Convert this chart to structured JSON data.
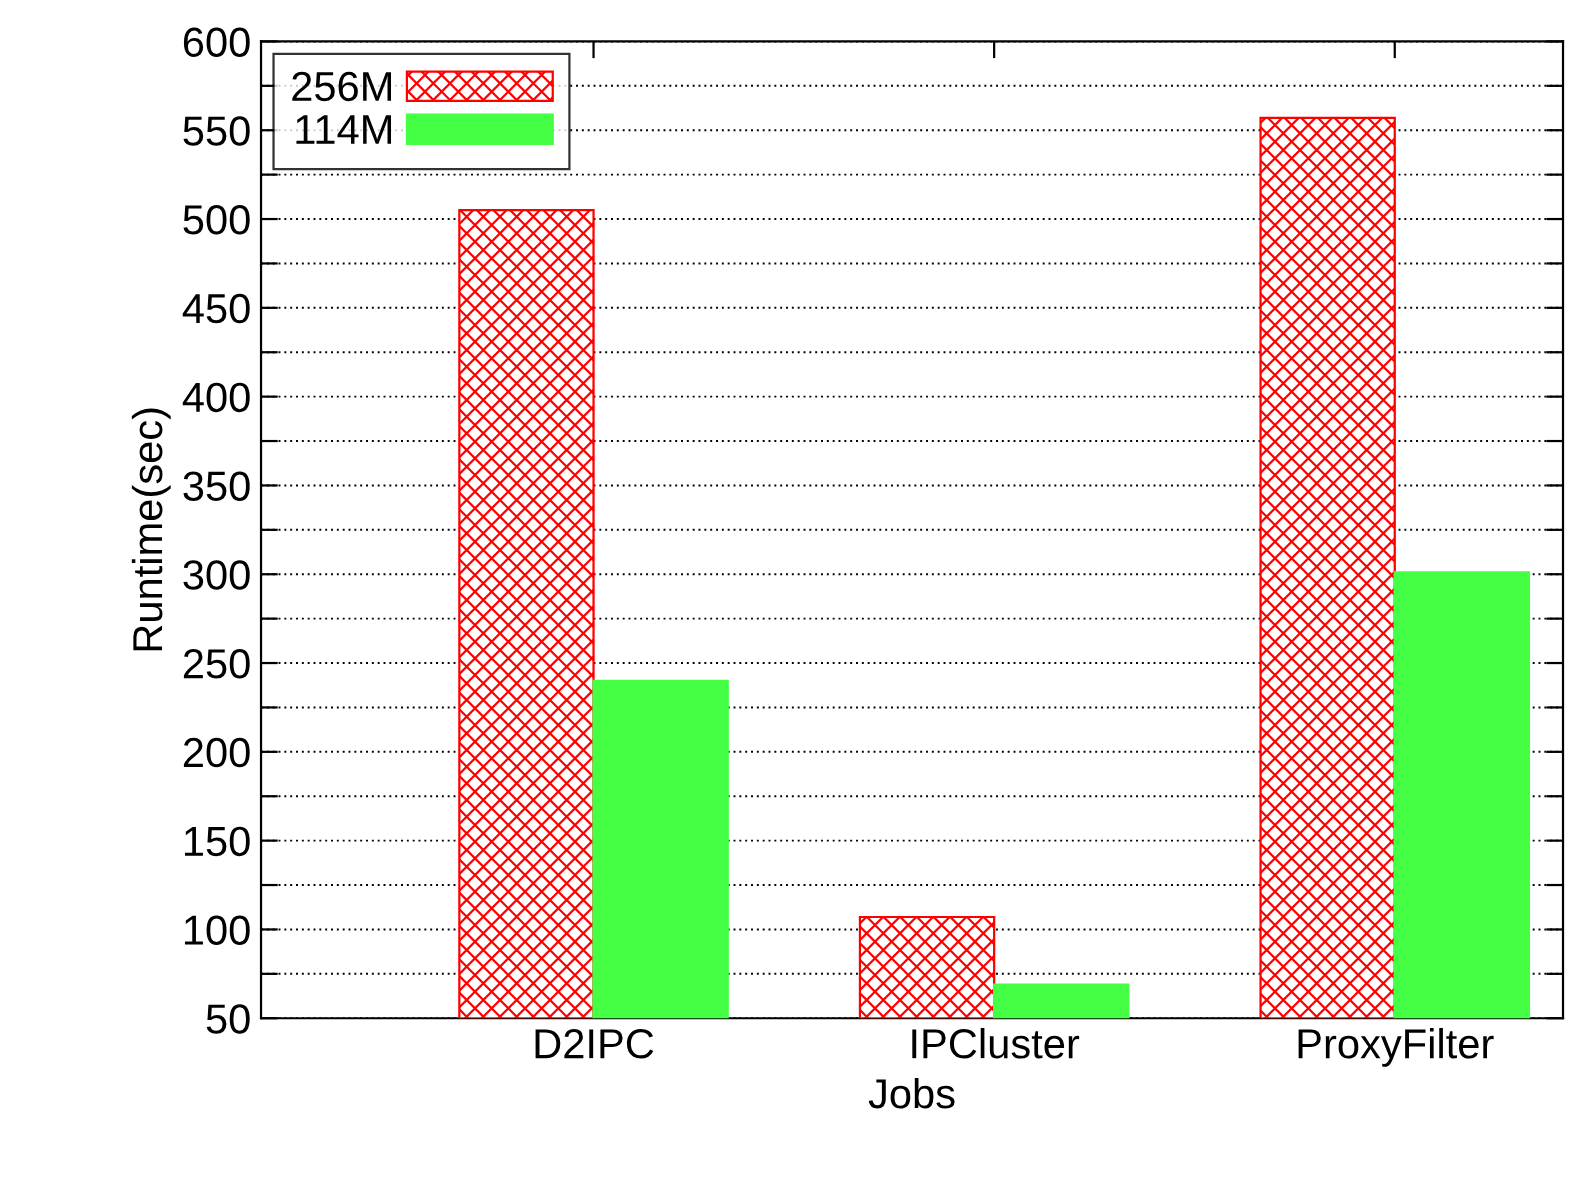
{
  "chart_data": {
    "type": "bar",
    "xlabel": "Jobs",
    "ylabel": "Runtime(sec)",
    "categories": [
      "D2IPC",
      "IPCluster",
      "ProxyFilter"
    ],
    "series": [
      {
        "name": "256M",
        "color": "#ff0000",
        "values": [
          505,
          107,
          557
        ]
      },
      {
        "name": "114M",
        "color": "#44ff44",
        "values": [
          240,
          69,
          301
        ]
      }
    ],
    "ylim": [
      50,
      600
    ],
    "yticks": [
      50,
      {
        "value": 75,
        "label": null
      },
      100,
      {
        "value": 125,
        "label": null
      },
      150,
      {
        "value": 175,
        "label": null
      },
      200,
      {
        "value": 225,
        "label": null
      },
      250,
      {
        "value": 275,
        "label": null
      },
      300,
      {
        "value": 325,
        "label": null
      },
      350,
      {
        "value": 375,
        "label": null
      },
      400,
      {
        "value": 425,
        "label": null
      },
      450,
      {
        "value": 475,
        "label": null
      },
      500,
      {
        "value": 525,
        "label": null
      },
      550,
      {
        "value": 575,
        "label": null
      },
      600
    ],
    "grid": "y",
    "legend": "top left"
  }
}
